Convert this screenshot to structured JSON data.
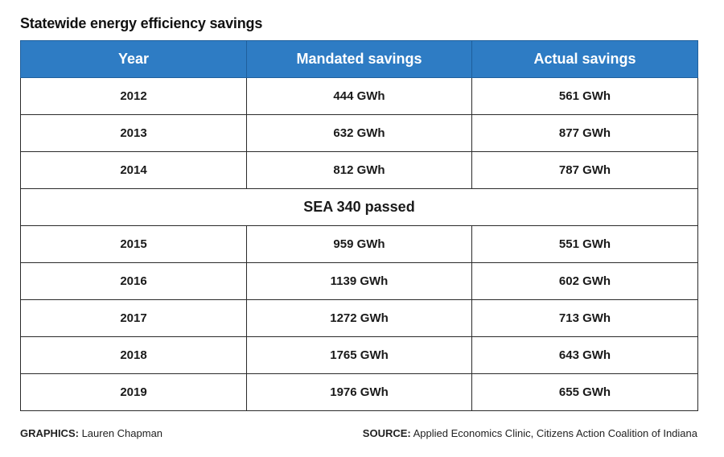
{
  "title": "Statewide energy efficiency savings",
  "chart_data": {
    "type": "table",
    "title": "Statewide energy efficiency savings",
    "columns": [
      "Year",
      "Mandated savings",
      "Actual savings"
    ],
    "rows": [
      {
        "kind": "data",
        "year": "2012",
        "mandated": "444 GWh",
        "actual": "561 GWh"
      },
      {
        "kind": "data",
        "year": "2013",
        "mandated": "632 GWh",
        "actual": "877 GWh"
      },
      {
        "kind": "data",
        "year": "2014",
        "mandated": "812 GWh",
        "actual": "787 GWh"
      },
      {
        "kind": "separator",
        "label": "SEA 340 passed"
      },
      {
        "kind": "data",
        "year": "2015",
        "mandated": "959 GWh",
        "actual": "551 GWh"
      },
      {
        "kind": "data",
        "year": "2016",
        "mandated": "1139 GWh",
        "actual": "602 GWh"
      },
      {
        "kind": "data",
        "year": "2017",
        "mandated": "1272 GWh",
        "actual": "713 GWh"
      },
      {
        "kind": "data",
        "year": "2018",
        "mandated": "1765 GWh",
        "actual": "643 GWh"
      },
      {
        "kind": "data",
        "year": "2019",
        "mandated": "1976 GWh",
        "actual": "655 GWh"
      }
    ],
    "header_color": "#2e7cc4"
  },
  "footer": {
    "graphics_label": "GRAPHICS:",
    "graphics_value": "Lauren Chapman",
    "source_label": "SOURCE:",
    "source_value": "Applied Economics Clinic, Citizens Action Coalition of Indiana"
  }
}
